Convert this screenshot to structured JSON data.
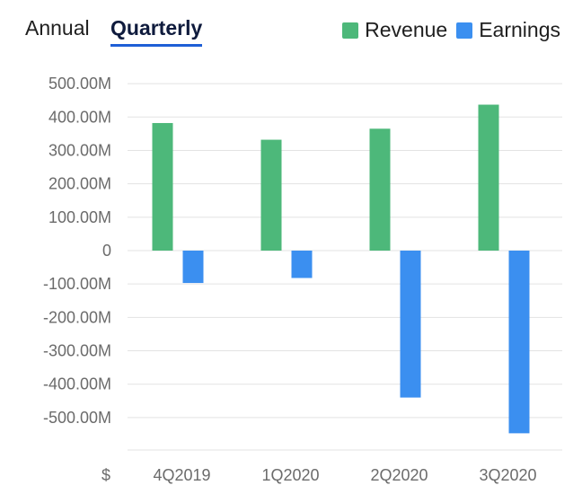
{
  "tabs": {
    "annual": "Annual",
    "quarterly": "Quarterly",
    "selected": "Quarterly"
  },
  "legend": [
    {
      "name": "Revenue",
      "color": "#4db87a"
    },
    {
      "name": "Earnings",
      "color": "#3b8ff0"
    }
  ],
  "chart_data": {
    "type": "bar",
    "categories": [
      "4Q2019",
      "1Q2020",
      "2Q2020",
      "3Q2020"
    ],
    "series": [
      {
        "name": "Revenue",
        "color": "#4db87a",
        "values": [
          382,
          332,
          365,
          437
        ]
      },
      {
        "name": "Earnings",
        "color": "#3b8ff0",
        "values": [
          -97,
          -82,
          -440,
          -547
        ]
      }
    ],
    "unit_label": "$",
    "y_ticks": [
      500,
      400,
      300,
      200,
      100,
      0,
      -100,
      -200,
      -300,
      -400,
      -500
    ],
    "y_tick_labels": [
      "500.00M",
      "400.00M",
      "300.00M",
      "200.00M",
      "100.00M",
      "0",
      "-100.00M",
      "-200.00M",
      "-300.00M",
      "-400.00M",
      "-500.00M"
    ],
    "ylim": [
      -600,
      500
    ],
    "ylabel": "",
    "xlabel": "",
    "grid": true,
    "legend_position": "top-right"
  }
}
